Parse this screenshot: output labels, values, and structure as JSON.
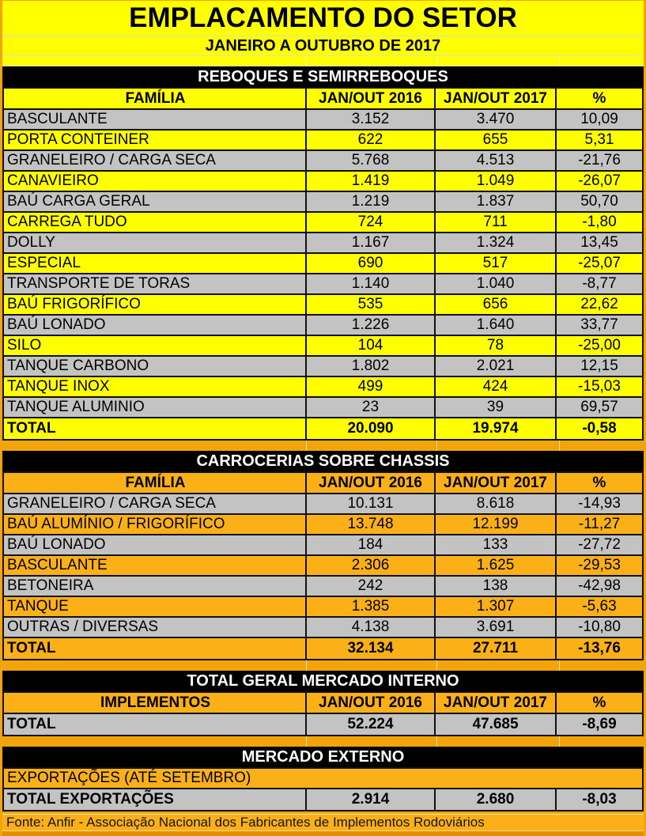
{
  "title": "EMPLACAMENTO DO SETOR",
  "subtitle": "JANEIRO A OUTUBRO DE 2017",
  "footer": "Fonte: Anfir - Associação Nacional dos Fabricantes de Implementos Rodoviários",
  "colors": {
    "yellow": "#FFFF00",
    "orange": "#FBB018",
    "gray": "#C3C3C3",
    "page_bg": "#F2A40A",
    "bottom_strip": "#E18F00",
    "band_bg": "#000000",
    "band_text": "#FFFFFF"
  },
  "sections": [
    {
      "id": "reboques-e-semirreboques",
      "header": "REBOQUES E SEMIRREBOQUES",
      "col_headers": [
        "FAMÍLIA",
        "JAN/OUT 2016",
        "JAN/OUT 2017",
        "%"
      ],
      "header_row_bg": "yellow",
      "rows": [
        {
          "label": "BASCULANTE",
          "v2016": "3.152",
          "v2017": "3.470",
          "pct": "10,09",
          "bg": "gray",
          "bold": false
        },
        {
          "label": "PORTA CONTEINER",
          "v2016": "622",
          "v2017": "655",
          "pct": "5,31",
          "bg": "yellow",
          "bold": false
        },
        {
          "label": "GRANELEIRO / CARGA SECA",
          "v2016": "5.768",
          "v2017": "4.513",
          "pct": "-21,76",
          "bg": "gray",
          "bold": false
        },
        {
          "label": "CANAVIEIRO",
          "v2016": "1.419",
          "v2017": "1.049",
          "pct": "-26,07",
          "bg": "yellow",
          "bold": false
        },
        {
          "label": "BAÚ CARGA GERAL",
          "v2016": "1.219",
          "v2017": "1.837",
          "pct": "50,70",
          "bg": "gray",
          "bold": false
        },
        {
          "label": "CARREGA TUDO",
          "v2016": "724",
          "v2017": "711",
          "pct": "-1,80",
          "bg": "yellow",
          "bold": false
        },
        {
          "label": "DOLLY",
          "v2016": "1.167",
          "v2017": "1.324",
          "pct": "13,45",
          "bg": "gray",
          "bold": false
        },
        {
          "label": "ESPECIAL",
          "v2016": "690",
          "v2017": "517",
          "pct": "-25,07",
          "bg": "yellow",
          "bold": false
        },
        {
          "label": "TRANSPORTE DE TORAS",
          "v2016": "1.140",
          "v2017": "1.040",
          "pct": "-8,77",
          "bg": "gray",
          "bold": false
        },
        {
          "label": "BAÚ FRIGORÍFICO",
          "v2016": "535",
          "v2017": "656",
          "pct": "22,62",
          "bg": "yellow",
          "bold": false
        },
        {
          "label": "BAÚ LONADO",
          "v2016": "1.226",
          "v2017": "1.640",
          "pct": "33,77",
          "bg": "gray",
          "bold": false
        },
        {
          "label": "SILO",
          "v2016": "104",
          "v2017": "78",
          "pct": "-25,00",
          "bg": "yellow",
          "bold": false
        },
        {
          "label": "TANQUE CARBONO",
          "v2016": "1.802",
          "v2017": "2.021",
          "pct": "12,15",
          "bg": "gray",
          "bold": false
        },
        {
          "label": "TANQUE INOX",
          "v2016": "499",
          "v2017": "424",
          "pct": "-15,03",
          "bg": "yellow",
          "bold": false
        },
        {
          "label": "TANQUE ALUMINIO",
          "v2016": "23",
          "v2017": "39",
          "pct": "69,57",
          "bg": "gray",
          "bold": false
        },
        {
          "label": "TOTAL",
          "v2016": "20.090",
          "v2017": "19.974",
          "pct": "-0,58",
          "bg": "yellow",
          "bold": true
        }
      ]
    },
    {
      "id": "carrocerias-sobre-chassis",
      "header": "CARROCERIAS SOBRE CHASSIS",
      "col_headers": [
        "FAMÍLIA",
        "JAN/OUT 2016",
        "JAN/OUT 2017",
        "%"
      ],
      "header_row_bg": "orange",
      "rows": [
        {
          "label": "GRANELEIRO / CARGA SECA",
          "v2016": "10.131",
          "v2017": "8.618",
          "pct": "-14,93",
          "bg": "gray",
          "bold": false
        },
        {
          "label": "BAÚ ALUMÍNIO / FRIGORÍFICO",
          "v2016": "13.748",
          "v2017": "12.199",
          "pct": "-11,27",
          "bg": "orange",
          "bold": false
        },
        {
          "label": "BAÚ LONADO",
          "v2016": "184",
          "v2017": "133",
          "pct": "-27,72",
          "bg": "gray",
          "bold": false
        },
        {
          "label": "BASCULANTE",
          "v2016": "2.306",
          "v2017": "1.625",
          "pct": "-29,53",
          "bg": "orange",
          "bold": false
        },
        {
          "label": "BETONEIRA",
          "v2016": "242",
          "v2017": "138",
          "pct": "-42,98",
          "bg": "gray",
          "bold": false
        },
        {
          "label": "TANQUE",
          "v2016": "1.385",
          "v2017": "1.307",
          "pct": "-5,63",
          "bg": "orange",
          "bold": false
        },
        {
          "label": "OUTRAS / DIVERSAS",
          "v2016": "4.138",
          "v2017": "3.691",
          "pct": "-10,80",
          "bg": "gray",
          "bold": false
        },
        {
          "label": "TOTAL",
          "v2016": "32.134",
          "v2017": "27.711",
          "pct": "-13,76",
          "bg": "orange",
          "bold": true
        }
      ]
    },
    {
      "id": "total-geral-mercado-interno",
      "header": "TOTAL GERAL MERCADO INTERNO",
      "col_headers": [
        "IMPLEMENTOS",
        "JAN/OUT 2016",
        "JAN/OUT 2017",
        "%"
      ],
      "header_row_bg": "orange",
      "rows": [
        {
          "label": "TOTAL",
          "v2016": "52.224",
          "v2017": "47.685",
          "pct": "-8,69",
          "bg": "gray",
          "bold": true
        }
      ]
    },
    {
      "id": "mercado-externo",
      "header": "MERCADO EXTERNO",
      "note_row": "EXPORTAÇÕES  (ATÉ SETEMBRO)",
      "rows": [
        {
          "label": "TOTAL EXPORTAÇÕES",
          "v2016": "2.914",
          "v2017": "2.680",
          "pct": "-8,03",
          "bg": "gray",
          "bold": true
        }
      ]
    }
  ]
}
